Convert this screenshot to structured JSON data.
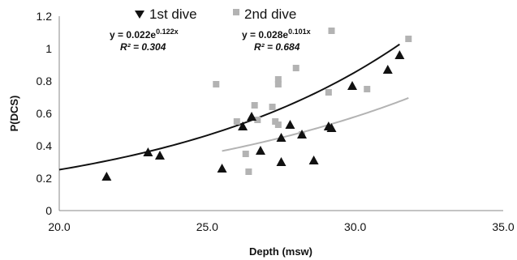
{
  "chart_data": {
    "type": "scatter",
    "title": "",
    "xlabel": "Depth (msw)",
    "ylabel": "P(DCS)",
    "xlim": [
      20.0,
      35.0
    ],
    "ylim": [
      0,
      1.2
    ],
    "x_ticks": [
      "20.0",
      "25.0",
      "30.0",
      "35.0"
    ],
    "y_ticks": [
      "0",
      "0.2",
      "0.4",
      "0.6",
      "0.8",
      "1",
      "1.2"
    ],
    "grid": false,
    "legend_position": "top",
    "series": [
      {
        "name": "1st dive",
        "marker": "triangle",
        "color": "#111111",
        "points": [
          {
            "x": 21.6,
            "y": 0.21
          },
          {
            "x": 23.0,
            "y": 0.36
          },
          {
            "x": 23.4,
            "y": 0.34
          },
          {
            "x": 25.5,
            "y": 0.26
          },
          {
            "x": 26.2,
            "y": 0.52
          },
          {
            "x": 26.5,
            "y": 0.58
          },
          {
            "x": 26.8,
            "y": 0.37
          },
          {
            "x": 27.5,
            "y": 0.3
          },
          {
            "x": 27.5,
            "y": 0.45
          },
          {
            "x": 27.8,
            "y": 0.53
          },
          {
            "x": 28.2,
            "y": 0.47
          },
          {
            "x": 28.6,
            "y": 0.31
          },
          {
            "x": 29.1,
            "y": 0.52
          },
          {
            "x": 29.2,
            "y": 0.51
          },
          {
            "x": 29.9,
            "y": 0.77
          },
          {
            "x": 31.1,
            "y": 0.87
          },
          {
            "x": 31.5,
            "y": 0.96
          }
        ],
        "trendline": {
          "equation": {
            "prefix": "y = 0.022e",
            "exponent": "0.122x"
          },
          "a": 0.022,
          "b": 0.122,
          "x_start": 20.0,
          "x_end": 31.5,
          "r2_label": "R² = 0.304",
          "color": "#111111"
        }
      },
      {
        "name": "2nd dive",
        "marker": "square",
        "color": "#b3b3b3",
        "points": [
          {
            "x": 25.3,
            "y": 0.78
          },
          {
            "x": 26.0,
            "y": 0.55
          },
          {
            "x": 26.3,
            "y": 0.35
          },
          {
            "x": 26.4,
            "y": 0.24
          },
          {
            "x": 26.6,
            "y": 0.65
          },
          {
            "x": 26.7,
            "y": 0.56
          },
          {
            "x": 27.2,
            "y": 0.64
          },
          {
            "x": 27.3,
            "y": 0.55
          },
          {
            "x": 27.4,
            "y": 0.53
          },
          {
            "x": 27.4,
            "y": 0.78
          },
          {
            "x": 27.4,
            "y": 0.81
          },
          {
            "x": 28.0,
            "y": 0.88
          },
          {
            "x": 28.2,
            "y": 0.47
          },
          {
            "x": 29.1,
            "y": 0.73
          },
          {
            "x": 29.2,
            "y": 1.11
          },
          {
            "x": 30.4,
            "y": 0.75
          },
          {
            "x": 31.8,
            "y": 1.06
          }
        ],
        "trendline": {
          "equation": {
            "prefix": "y = 0.028e",
            "exponent": "0.101x"
          },
          "a": 0.028,
          "b": 0.101,
          "x_start": 25.5,
          "x_end": 31.8,
          "r2_label": "R² = 0.684",
          "color": "#b3b3b3"
        }
      }
    ]
  }
}
